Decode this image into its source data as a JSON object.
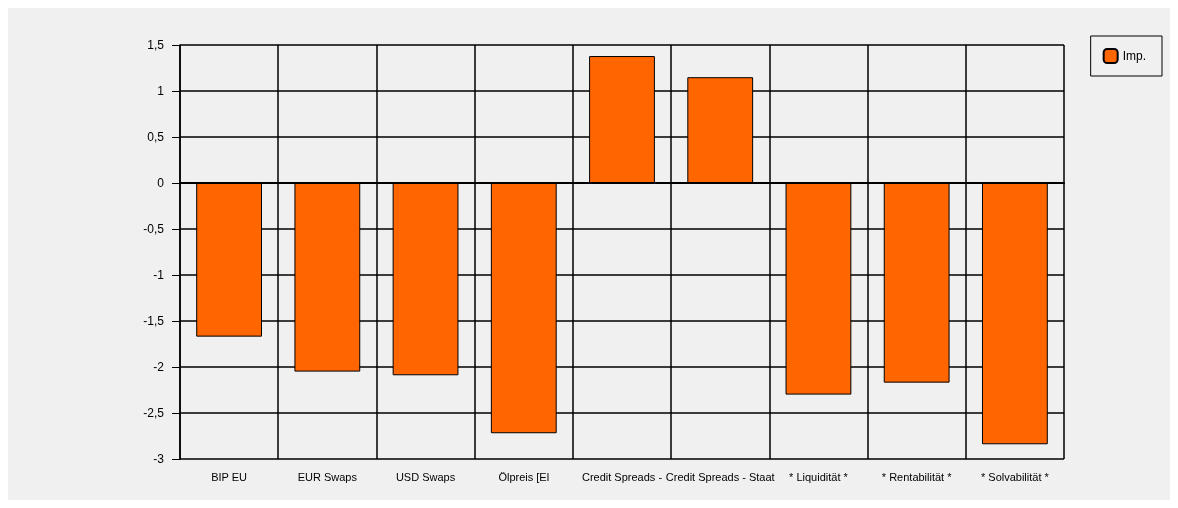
{
  "chart_data": {
    "type": "bar",
    "categories": [
      "BIP EU",
      "EUR Swaps",
      "USD Swaps",
      "Ölpreis [El",
      "Credit Spreads -",
      "Credit Spreads - Staat",
      "* Liquidität *",
      "* Rentabilität *",
      "* Solvabilität *"
    ],
    "series": [
      {
        "name": "Imp.",
        "color": "#ff6600",
        "values": [
          -1.67,
          -2.05,
          -2.09,
          -2.72,
          1.38,
          1.15,
          -2.3,
          -2.17,
          -2.84
        ]
      }
    ],
    "ylim": [
      -3,
      1.5
    ],
    "yticks": [
      {
        "value": -3,
        "label": "-3"
      },
      {
        "value": -2.5,
        "label": "-2,5"
      },
      {
        "value": -2,
        "label": "-2"
      },
      {
        "value": -1.5,
        "label": "-1,5"
      },
      {
        "value": -1,
        "label": "-1"
      },
      {
        "value": -0.5,
        "label": "-0,5"
      },
      {
        "value": 0,
        "label": "0"
      },
      {
        "value": 0.5,
        "label": "0,5"
      },
      {
        "value": 1,
        "label": "1"
      },
      {
        "value": 1.5,
        "label": "1,5"
      }
    ],
    "grid": true,
    "legend": "top right"
  }
}
